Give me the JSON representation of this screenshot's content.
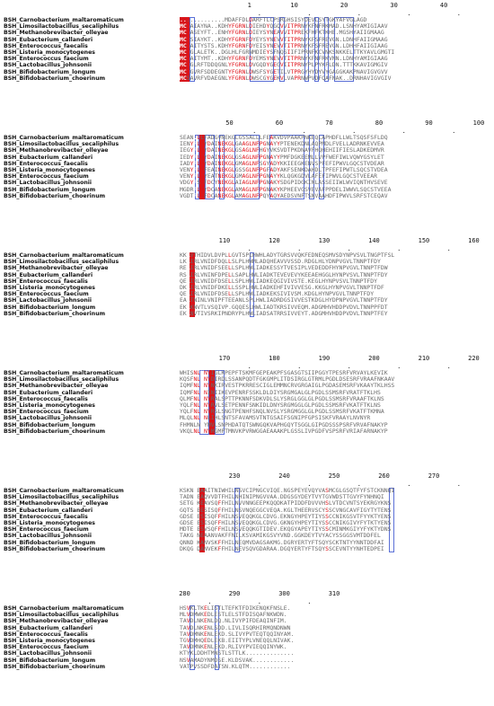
{
  "species": [
    "BSH_Carnobacterium_maltaromaticum",
    "BSH_Limosilactobacillus_secaliphilus",
    "BSH_Methanobrevibacter_olleyae",
    "BSH_Eubacterium_callanderi",
    "BSH_Enterococcus_faecalis",
    "BSH_Listeria_monocytogenes",
    "BSH_Enterococcus_faecium",
    "BSH_Lactobacillus_johnsonii",
    "BSH_Bifidobacterium_longum",
    "BSH_Bifidobacterium_choerinum"
  ],
  "blocks": [
    {
      "ticks": [
        {
          "label": "1",
          "col": 14
        },
        {
          "label": "10",
          "col": 23
        },
        {
          "label": "20",
          "col": 33
        },
        {
          "label": "30",
          "col": 43
        },
        {
          "label": "40",
          "col": 53
        }
      ],
      "dots": [
        16,
        26,
        36,
        46,
        56
      ],
      "seqs": [
        ".............MDAFFDLDARFTLCPSRGHSISYDEVLSYTGKYAFVGLAGD",
        "MCTAIAYNA..KDHYFGRNLDIEHDYQGQVVITPRNYKFNFRKMAD.LSNHYAMIGIAAV",
        "MCTASEYFT..ENHYFGRNLDIEYSYNEAVVITPREKFHFKTKHE.MGSHYAIIGMAAG",
        "MCTSIAYKT..KDHYFGRNFDYEYSYNEVVTITPRNYKFSFREVGN.LDNHFAIIGMAAG",
        "MCTAITYSTS.KDHYFGRNFDYEISYNEVVTITPRNYKFSFREVGN.LDHHFAIIGIAAG",
        "MCTGLALETK..DGLHLFGRNMDIEYSFNQSIIFIPRNFKCVNKSNKKELTTKYAVLGMGTI",
        "MCTAITYMT..KDHYFGRNFDYEMSYNEVVTITPRNYKFNFRKVNN.LDNHYAMIGIAAG",
        "MCTGLRFTDDQGNLYFGRNLDVGQDYGEGVIITPRNYPLPYKFLDN.TTTKKAVIGMGIV",
        "MCTGVRFSDDEGNTYFGRNLDWSFSYGETILVTPRGYHYDYVYGAGGKAKPNAVIGVGVV",
        "MCSAVRFVDAEGNLYFGRNLDWSCGYGEKVLVAPRNWPVDFQAFNAK..DRNHAVIGVGIV"
      ]
    },
    {
      "ticks": [
        {
          "label": "50",
          "col": 10
        },
        {
          "label": "60",
          "col": 20
        },
        {
          "label": "70",
          "col": 30
        },
        {
          "label": "80",
          "col": 40
        },
        {
          "label": "90",
          "col": 50
        },
        {
          "label": "100",
          "col": 60
        }
      ],
      "dots": [
        15,
        25,
        35,
        45,
        55
      ],
      "seqs": [
        "SEAN.LLFADGVNEKGLGSSALLLFEAKVDVPAAKPNKEQLAPHDFLLWLTSQSFSFLDQ",
        "IENYPLYYDAINEKGLGAAGLNFPGNAYYPTENEKDNLAQPMDLFVELLADRNKEVVEA",
        "IEGYPLYYDAINEKGLGSAGLNFHGYVKSVDTPKDNAVFHQHEHIIFIESLADKEDMVR",
        "IEDYPLYYDAINEKGLGSAGLNFPGNAYYPMFDGKEEMLLVPFWEFIWLVQWYGSYLET",
        "IADYPLYYDAINEKGLGMAGLNFSGYADYKKIEEGKENVSPFEFIPWVLGQCSTVDEAR",
        "VENYPLYFEAINEKGLGSSGLNFPGFADYAKFSENKDAHDLTPFEFIPWTLSQCSTVDEA",
        "VENYPLYYEATNEKGLGMAGLNFPGNAYYKLQGKGDVLAFEFIPWVLGQCSTVEEAR",
        "VDGYPSYFDCYNEKGLAIAGLNFPGNAKYSDGPIDGKINLASSEIIWLWVIQNTHVSEVE",
        "MGDRPLYYDCANEKGLAMAGLNFPGNAKYKPHEEVGSVEVAFPPDELIWWVLSQCSTVEEA",
        "VGDTPLYFDCANEKGLAMAGLNFPQYAQYAEDSVNFTSNVAAHDFIPWVLSRFSTCEQAV"
      ]
    },
    {
      "ticks": [
        {
          "label": "110",
          "col": 9
        },
        {
          "label": "120",
          "col": 19
        },
        {
          "label": "130",
          "col": 29
        },
        {
          "label": "140",
          "col": 39
        },
        {
          "label": "150",
          "col": 49
        },
        {
          "label": "160",
          "col": 59
        }
      ],
      "dots": [
        14,
        24,
        34,
        44,
        54
      ],
      "seqs": [
        "KKLVTHIDVLDVPLLGVTSPLHWHLADYTGRSVVQKFEDNEQSMVSDYNPVSVLTNGPTFSL",
        "LKLIRLVNIDFDQLLSLPLHWMLADQHEAVVVSSD.RDGLHLYDNPVGVLTNNPTFDY",
        "RELIRLVNIDFSEELLSPLHWLIADKESSYTVESIPLVEDEDDFHYNPVGVLTNNPTFDW",
        "RSLIRLVNINFDPELLSAPLHWLIADKTEVEVEVYKEEAEHGGLHYNPVSVLTNNPTFDY",
        "QELIRLVNIDFDSELLSPLHWLIADKEQGIVIVSTE.KEGLHYNPVSVLTNNPTFDY",
        "DKLIRLVNIDFDKELLSSPLHWLIADKEHFIVIVVESG.KKGLHYNPVGVLTNNPTFDF",
        "QELIRLVNIDFDSELLSPLHWLIADKEKSIVIVSM.KDGLHYNPVGVLTNNPTFDY",
        "EALTNINLVNIPFTEEANLSPLHWLIADRDGSIVVESTKDGLHYDPNPVGVLTNNPTFDY",
        "EKLKNVTLVSQIVP.GQQESLHWLIADTKRSIVVEQM.ADGMHVHDDPVDVLTNNPPFDT",
        "EKLNVTIVSRKIPNDRYPLHWLIADSATRRSIVVEYT.ADGMHVHDDPVDVLTNNPTFEY"
      ]
    },
    {
      "ticks": [
        {
          "label": "170",
          "col": 9
        },
        {
          "label": "180",
          "col": 19
        },
        {
          "label": "190",
          "col": 29
        },
        {
          "label": "200",
          "col": 39
        },
        {
          "label": "210",
          "col": 49
        },
        {
          "label": "220",
          "col": 59
        }
      ],
      "dots": [
        14,
        24,
        34,
        44,
        54
      ],
      "seqs": [
        "WHISNLNNYIGLKPEPFTSKMFGEPEAKPFSGASGTSIIPGGYTPESRFVRVAYLKEVIK",
        "KQSFNLNNYDIRDLSSANPQDTFGKGMPLITDSIRGLGTRMLPGDLDSESRFVRAAFNKAAV",
        "IQMFNLNNYNKIRVESTPKRRESCIGLEMMNCRVGRGAIGLPGDASEMSRFVKAAYTKLHSS",
        "IQMFNLNNINIIKEVPENRFSSKLDLDIYSRGMGALGLPGDLSSMSRFVRATFTKLHS",
        "QLMFNLNNYRALSPTTPKNNFSDKVDLSLYSRGLGGLGLPGDLSSMSRFVRAAFTKLNS",
        "YQLFNLNNYRVLSETPENNFSNKIDLDNYSRGMGGLGLPGDLSSMSRFVKATFTKLNS",
        "YQLFNLNNYRSLSNGTPENHFSNQLNVSLYSRGMGGLGLPGDLSSMSRFVKATFTKMNA",
        "MLQLNLNNLIHLSNTSFAVAMSVTNTGSAIFSGNIPFGPSISKFVRAAYLNVNYR",
        "FHMNLNNYMVLSNPHDATQTSWNGQKVAPHGQYTSGGLGIPGDSSSPSRFVRVAFNAKYP",
        "VKQLNLNNYMGMPTMNVKPVRWGGAEAAAKPLGSSLIVPGDFVSPSRFVRIAFARNAKYP"
      ]
    },
    {
      "ticks": [
        {
          "label": "230",
          "col": 11
        },
        {
          "label": "240",
          "col": 21
        },
        {
          "label": "250",
          "col": 31
        },
        {
          "label": "260",
          "col": 41
        },
        {
          "label": "270",
          "col": 51
        }
      ],
      "dots": [
        16,
        26,
        36,
        46,
        56
      ],
      "seqs": [
        "KSKNEEAAITNIWHILNSVCIPNGCVIQE.NGSPEYEVQYVASMCGLGSQTFYFSTCKNNQI",
        "TADNEEAQVVDTFHILNHINIPNGVVAA.DDGSGYDEYTVYTGVWDSTTGVYFYNHNQI",
        "SETGEKEAVSQFFHILNVVNNGEEPKQQDKATPIDDFDVVVHSLVTDCVNTSYEKRGYKNS",
        "GQTSEEESISQFFHILNSVNQEGGCVEQA.KGLTHEERVSCYSSCVNGCAVFIGYTYTENS",
        "GDSEEESISQFFHILNSVEQQKGLCDVG.EKNGYHPEYTIYSSCCNIKGSVTFYYKTYENS",
        "GDSEEESISQFFHILNSVEQQKGLCDVG.GKNGYHPEYTIYSSCCNIKGIVYFYTKTYENS",
        "MDTEEESVSQFFHILNSVEQQKGTIDEV.EKQGYAPEYTIYSSCMINMKGIYYFYKTYDNS",
        "TAKGENEAANVAKFFNILKSVAMIKGSVYVND.GGKDEYTVYACYSSGGSVMTDDFEL",
        "QNNDEKANVSKFFHILNEQMVDAGSAKMG.DGRYERTYFTSQYSCKTNTYYNNTDDFAI",
        "DKQGEDANVEKFFHILNEVSQVGDARAA.DGQYERTYFTSQYSSCEVNTYYNHTEDPEI"
      ]
    },
    {
      "ticks": [
        {
          "label": "280",
          "col": 1
        },
        {
          "label": "290",
          "col": 11
        },
        {
          "label": "300",
          "col": 21
        },
        {
          "label": "310",
          "col": 31
        }
      ],
      "dots": [
        6,
        16,
        26
      ],
      "seqs": [
        "HSVKLTKELISTLTEFKTFDIKENQKFNSLE.",
        "MLVDMWKEDLESTLELSTFDISQAFNKWDN.",
        "TAVDLNKENLDQ.NLIVYPIFDEAQINFIM.",
        "TAVDLNKENLSDD.LIVLISQRHIRMQNDNWN",
        "TAVDMNKENLEKD.SLIVYPVTEQTQQINYAM.",
        "TGVDMHQEDLEKB.EIITYPLVNEQQLNIVAK.",
        "TAVDMNKENLEKD.RLIVYPVIEQQINYWK.",
        "KTYKLDDHTMNSTLSTTLK..............",
        "NSVAMADYNMDSE.KLDSVAK............",
        "VATPVSSDFDATSN.KLQTM............"
      ]
    }
  ]
}
